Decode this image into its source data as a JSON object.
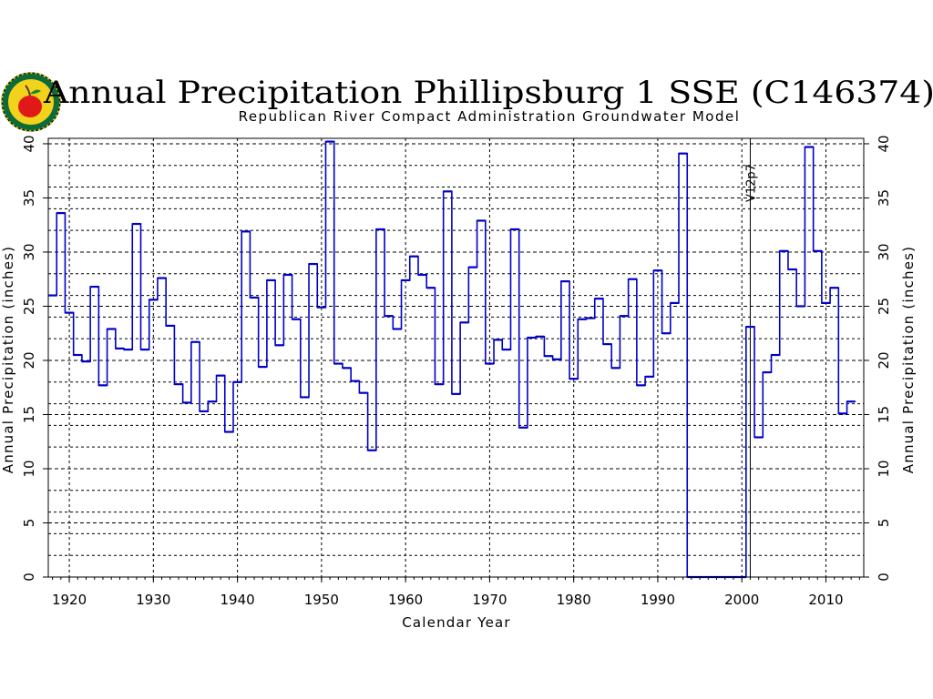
{
  "chart_data": {
    "type": "line",
    "style": "step",
    "title": "Annual Precipitation Phillipsburg 1 SSE (C146374)",
    "subtitle": "Republican River Compact Administration Groundwater Model",
    "xlabel": "Calendar Year",
    "ylabel": "Annual Precipitation (inches)",
    "ylabel_right": "Annual Precipitation (inches)",
    "xlim": [
      1917.5,
      2014.5
    ],
    "ylim": [
      0,
      40.5
    ],
    "xticks": [
      "1920",
      "1930",
      "1940",
      "1950",
      "1960",
      "1970",
      "1980",
      "1990",
      "2000",
      "2010"
    ],
    "yticks": [
      "0",
      "5",
      "10",
      "15",
      "20",
      "25",
      "30",
      "35",
      "40"
    ],
    "grid": true,
    "line_color": "#0000c8",
    "annotation": {
      "x": 2001,
      "text": "V12p7"
    },
    "x": [
      1918,
      1919,
      1920,
      1921,
      1922,
      1923,
      1924,
      1925,
      1926,
      1927,
      1928,
      1929,
      1930,
      1931,
      1932,
      1933,
      1934,
      1935,
      1936,
      1937,
      1938,
      1939,
      1940,
      1941,
      1942,
      1943,
      1944,
      1945,
      1946,
      1947,
      1948,
      1949,
      1950,
      1951,
      1952,
      1953,
      1954,
      1955,
      1956,
      1957,
      1958,
      1959,
      1960,
      1961,
      1962,
      1963,
      1964,
      1965,
      1966,
      1967,
      1968,
      1969,
      1970,
      1971,
      1972,
      1973,
      1974,
      1975,
      1976,
      1977,
      1978,
      1979,
      1980,
      1981,
      1982,
      1983,
      1984,
      1985,
      1986,
      1987,
      1988,
      1989,
      1990,
      1991,
      1992,
      1993,
      1994,
      1995,
      1996,
      1997,
      1998,
      1999,
      2000,
      2001,
      2002,
      2003,
      2004,
      2005,
      2006,
      2007,
      2008,
      2009,
      2010,
      2011,
      2012,
      2013
    ],
    "values": [
      26.0,
      33.6,
      24.4,
      20.5,
      19.9,
      26.8,
      17.7,
      22.9,
      21.1,
      21.0,
      32.6,
      21.0,
      25.6,
      27.6,
      23.2,
      17.8,
      16.1,
      21.7,
      15.3,
      16.2,
      18.6,
      13.4,
      18.0,
      31.9,
      25.8,
      19.4,
      27.4,
      21.4,
      27.9,
      23.8,
      16.6,
      28.9,
      24.9,
      40.2,
      19.7,
      19.3,
      18.1,
      17.0,
      11.7,
      32.1,
      24.1,
      22.9,
      27.4,
      29.6,
      27.9,
      26.7,
      17.8,
      35.6,
      16.9,
      23.5,
      28.6,
      32.9,
      19.7,
      21.9,
      21.0,
      32.1,
      13.8,
      22.1,
      22.2,
      20.4,
      20.1,
      27.3,
      18.3,
      23.8,
      23.9,
      25.7,
      21.5,
      19.3,
      24.1,
      27.5,
      17.7,
      18.5,
      28.3,
      22.5,
      25.3,
      39.1,
      0,
      0,
      0,
      0,
      0,
      0,
      0,
      23.1,
      12.9,
      18.9,
      20.5,
      30.1,
      28.4,
      25.0,
      39.7,
      30.1,
      25.3,
      26.7,
      15.1,
      16.2
    ]
  },
  "logo": {
    "name": "republican-river-compact-seal"
  }
}
